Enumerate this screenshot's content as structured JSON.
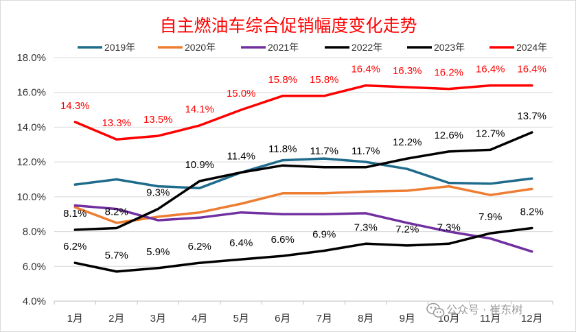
{
  "chart_data": {
    "type": "line",
    "title": "自主燃油车综合促销幅度变化走势",
    "xlabel": "",
    "ylabel": "",
    "categories": [
      "1月",
      "2月",
      "3月",
      "4月",
      "5月",
      "6月",
      "7月",
      "8月",
      "9月",
      "10月",
      "11月",
      "12月"
    ],
    "ylim": [
      4.0,
      18.0
    ],
    "yticks": [
      4.0,
      6.0,
      8.0,
      10.0,
      12.0,
      14.0,
      16.0,
      18.0
    ],
    "ytick_labels": [
      "4.0%",
      "6.0%",
      "8.0%",
      "10.0%",
      "12.0%",
      "14.0%",
      "16.0%",
      "18.0%"
    ],
    "grid": true,
    "legend_position": "top",
    "series": [
      {
        "name": "2019年",
        "color": "#1f6b8c",
        "labeled": false,
        "values": [
          10.7,
          11.0,
          10.6,
          10.5,
          11.4,
          12.1,
          12.2,
          12.0,
          11.6,
          10.8,
          10.75,
          11.05
        ]
      },
      {
        "name": "2020年",
        "color": "#ed7d31",
        "labeled": false,
        "values": [
          9.4,
          8.5,
          8.85,
          9.1,
          9.6,
          10.2,
          10.2,
          10.3,
          10.35,
          10.6,
          10.1,
          10.45
        ]
      },
      {
        "name": "2021年",
        "color": "#7030a0",
        "labeled": false,
        "values": [
          9.5,
          9.3,
          8.65,
          8.8,
          9.1,
          9.0,
          9.0,
          9.05,
          8.5,
          8.0,
          7.6,
          6.85
        ]
      },
      {
        "name": "2022年",
        "color": "#000000",
        "labeled": true,
        "label_color": "#000000",
        "values": [
          8.1,
          8.2,
          9.3,
          10.9,
          11.4,
          11.8,
          11.7,
          11.7,
          12.2,
          12.6,
          12.7,
          13.7
        ],
        "labels": [
          "8.1%",
          "8.2%",
          "9.3%",
          "10.9%",
          "11.4%",
          "11.8%",
          "11.7%",
          "11.7%",
          "12.2%",
          "12.6%",
          "12.7%",
          "13.7%"
        ]
      },
      {
        "name": "2023年",
        "color": "#000000",
        "labeled": true,
        "label_color": "#000000",
        "values": [
          6.2,
          5.7,
          5.9,
          6.2,
          6.4,
          6.6,
          6.9,
          7.3,
          7.2,
          7.3,
          7.9,
          8.2
        ],
        "labels": [
          "6.2%",
          "5.7%",
          "5.9%",
          "6.2%",
          "6.4%",
          "6.6%",
          "6.9%",
          "7.3%",
          "7.2%",
          "7.3%",
          "7.9%",
          "8.2%"
        ]
      },
      {
        "name": "2024年",
        "color": "#ff0000",
        "labeled": true,
        "label_color": "#ff0000",
        "values": [
          14.3,
          13.3,
          13.5,
          14.1,
          15.0,
          15.8,
          15.8,
          16.4,
          16.3,
          16.2,
          16.4,
          16.4
        ],
        "labels": [
          "14.3%",
          "13.3%",
          "13.5%",
          "14.1%",
          "15.0%",
          "15.8%",
          "15.8%",
          "16.4%",
          "16.3%",
          "16.2%",
          "16.4%",
          "16.4%"
        ]
      }
    ]
  },
  "watermark": {
    "text": "公众号 · 崔东树",
    "icon": "wechat-icon"
  }
}
